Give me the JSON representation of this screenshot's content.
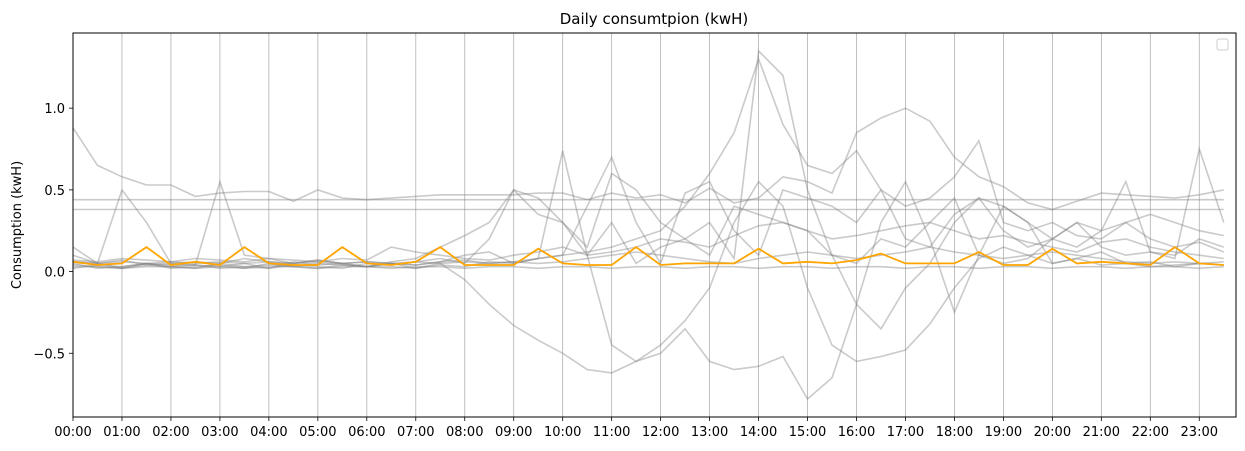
{
  "chart_data": {
    "type": "line",
    "title": "Daily consumtpion (kwH)",
    "xlabel": "",
    "ylabel": "Consumption (kwH)",
    "x_ticks": [
      "00:00",
      "01:00",
      "02:00",
      "03:00",
      "04:00",
      "05:00",
      "06:00",
      "07:00",
      "08:00",
      "09:00",
      "10:00",
      "11:00",
      "12:00",
      "13:00",
      "14:00",
      "15:00",
      "16:00",
      "17:00",
      "18:00",
      "19:00",
      "20:00",
      "21:00",
      "22:00",
      "23:00"
    ],
    "y_ticks": [
      -0.5,
      0.0,
      0.5,
      1.0
    ],
    "y_tick_labels": [
      "−0.5",
      "0.0",
      "0.5",
      "1.0"
    ],
    "xlim": [
      0,
      23.75
    ],
    "ylim": [
      -0.89,
      1.46
    ],
    "x_step_hours": 0.5,
    "grid": "vertical",
    "legend": "top-right, empty",
    "colors": {
      "background_series": "#808080",
      "highlight_series": "#FFA500",
      "grid": "#b0b0b0"
    },
    "background_series": [
      {
        "values": [
          0.88,
          0.65,
          0.58,
          0.53,
          0.53,
          0.46,
          0.48,
          0.49,
          0.49,
          0.43,
          0.5,
          0.45,
          0.44,
          0.45,
          0.46,
          0.47,
          0.47,
          0.47,
          0.47,
          0.48,
          0.48,
          0.44,
          0.48,
          0.45,
          0.47,
          0.42,
          0.51,
          0.42,
          0.45,
          0.58,
          0.55,
          0.48,
          0.85,
          0.94,
          1.0,
          0.92,
          0.7,
          0.58,
          0.52,
          0.42,
          0.38,
          0.43,
          0.48,
          0.47,
          0.46,
          0.45,
          0.47,
          0.5
        ]
      },
      {
        "values": [
          0.44,
          0.44,
          0.44,
          0.44,
          0.44,
          0.44,
          0.44,
          0.44,
          0.44,
          0.44,
          0.44,
          0.44,
          0.44,
          0.44,
          0.44,
          0.44,
          0.44,
          0.44,
          0.44,
          0.44,
          0.44,
          0.44,
          0.44,
          0.44,
          0.44,
          0.44,
          0.44,
          0.44,
          0.44,
          0.44,
          0.44,
          0.44,
          0.44,
          0.44,
          0.44,
          0.44,
          0.44,
          0.44,
          0.44,
          0.44,
          0.44,
          0.44,
          0.44,
          0.44,
          0.44,
          0.44,
          0.44,
          0.44
        ]
      },
      {
        "values": [
          0.38,
          0.38,
          0.38,
          0.38,
          0.38,
          0.38,
          0.38,
          0.38,
          0.38,
          0.38,
          0.38,
          0.38,
          0.38,
          0.38,
          0.38,
          0.38,
          0.38,
          0.38,
          0.38,
          0.38,
          0.38,
          0.38,
          0.38,
          0.38,
          0.38,
          0.38,
          0.38,
          0.38,
          0.38,
          0.38,
          0.38,
          0.38,
          0.38,
          0.38,
          0.38,
          0.38,
          0.38,
          0.38,
          0.38,
          0.38,
          0.38,
          0.38,
          0.38,
          0.38,
          0.38,
          0.38,
          0.38,
          0.38
        ]
      },
      {
        "values": [
          0.05,
          0.02,
          0.03,
          0.05,
          0.04,
          0.04,
          0.03,
          0.05,
          0.02,
          0.06,
          0.04,
          0.05,
          0.03,
          0.03,
          0.02,
          0.05,
          -0.05,
          -0.2,
          -0.33,
          -0.42,
          -0.5,
          -0.6,
          -0.62,
          -0.55,
          -0.45,
          -0.3,
          -0.1,
          0.3,
          0.55,
          0.4,
          -0.1,
          -0.45,
          -0.55,
          -0.52,
          -0.48,
          -0.32,
          -0.1,
          0.08,
          0.15,
          0.1,
          0.05,
          0.08,
          0.04,
          0.05,
          0.03,
          0.04,
          0.05,
          0.04
        ]
      },
      {
        "values": [
          0.04,
          0.03,
          0.02,
          0.05,
          0.03,
          0.04,
          0.02,
          0.03,
          0.04,
          0.03,
          0.05,
          0.04,
          0.03,
          0.06,
          0.08,
          0.15,
          0.22,
          0.3,
          0.5,
          0.45,
          0.3,
          0.1,
          -0.45,
          -0.55,
          -0.5,
          -0.35,
          -0.55,
          -0.6,
          -0.58,
          -0.52,
          -0.78,
          -0.65,
          -0.2,
          0.3,
          0.55,
          0.2,
          -0.25,
          0.1,
          0.4,
          0.3,
          0.05,
          0.08,
          0.12,
          0.05,
          0.06,
          0.03,
          0.05,
          0.04
        ]
      },
      {
        "values": [
          0.1,
          0.05,
          0.5,
          0.3,
          0.05,
          0.04,
          0.55,
          0.1,
          0.08,
          0.05,
          0.07,
          0.05,
          0.03,
          0.05,
          0.04,
          0.06,
          0.1,
          0.12,
          0.05,
          0.08,
          0.74,
          0.1,
          0.3,
          0.05,
          0.15,
          0.2,
          0.3,
          0.08,
          1.35,
          1.2,
          0.5,
          0.1,
          -0.2,
          -0.35,
          -0.1,
          0.05,
          0.3,
          0.45,
          0.4,
          0.3,
          0.2,
          0.15,
          0.25,
          0.55,
          0.12,
          0.1,
          0.2,
          0.15
        ]
      },
      {
        "values": [
          0.06,
          0.05,
          0.07,
          0.04,
          0.05,
          0.06,
          0.05,
          0.08,
          0.06,
          0.05,
          0.07,
          0.05,
          0.06,
          0.05,
          0.04,
          0.06,
          0.07,
          0.05,
          0.06,
          0.08,
          0.1,
          0.12,
          0.15,
          0.2,
          0.25,
          0.4,
          0.6,
          0.85,
          1.3,
          0.9,
          0.65,
          0.6,
          0.74,
          0.5,
          0.4,
          0.45,
          0.58,
          0.8,
          0.3,
          0.25,
          0.3,
          0.22,
          0.2,
          0.3,
          0.35,
          0.3,
          0.25,
          0.22
        ]
      },
      {
        "values": [
          0.15,
          0.05,
          0.02,
          0.04,
          0.03,
          0.02,
          0.05,
          0.03,
          0.02,
          0.04,
          0.03,
          0.02,
          0.05,
          0.04,
          0.06,
          0.08,
          0.05,
          0.2,
          0.5,
          0.35,
          0.3,
          0.15,
          0.6,
          0.5,
          0.3,
          0.2,
          0.1,
          0.4,
          0.35,
          0.3,
          0.25,
          0.1,
          0.05,
          0.2,
          0.15,
          0.3,
          0.45,
          0.1,
          0.05,
          0.08,
          0.2,
          0.3,
          0.15,
          0.1,
          0.12,
          0.08,
          0.75,
          0.3
        ]
      },
      {
        "values": [
          0.03,
          0.03,
          0.02,
          0.03,
          0.03,
          0.02,
          0.03,
          0.02,
          0.03,
          0.03,
          0.02,
          0.03,
          0.03,
          0.02,
          0.03,
          0.03,
          0.02,
          0.03,
          0.03,
          0.02,
          0.03,
          0.03,
          0.02,
          0.03,
          0.03,
          0.02,
          0.03,
          0.03,
          0.02,
          0.03,
          0.03,
          0.02,
          0.03,
          0.03,
          0.02,
          0.03,
          0.03,
          0.02,
          0.03,
          0.03,
          0.02,
          0.03,
          0.03,
          0.02,
          0.03,
          0.03,
          0.02,
          0.03
        ]
      },
      {
        "values": [
          0.07,
          0.06,
          0.08,
          0.07,
          0.06,
          0.08,
          0.07,
          0.06,
          0.08,
          0.07,
          0.06,
          0.08,
          0.07,
          0.15,
          0.12,
          0.1,
          0.08,
          0.07,
          0.1,
          0.12,
          0.15,
          0.1,
          0.12,
          0.15,
          0.2,
          0.18,
          0.15,
          0.22,
          0.28,
          0.3,
          0.25,
          0.2,
          0.22,
          0.25,
          0.28,
          0.3,
          0.25,
          0.2,
          0.22,
          0.18,
          0.15,
          0.12,
          0.18,
          0.2,
          0.15,
          0.12,
          0.1,
          0.08
        ]
      },
      {
        "values": [
          0.02,
          0.04,
          0.03,
          0.05,
          0.02,
          0.03,
          0.04,
          0.02,
          0.05,
          0.03,
          0.02,
          0.04,
          0.03,
          0.05,
          0.02,
          0.04,
          0.03,
          0.06,
          0.05,
          0.08,
          0.1,
          0.4,
          0.7,
          0.3,
          0.05,
          0.48,
          0.55,
          0.25,
          0.1,
          0.5,
          0.45,
          0.4,
          0.3,
          0.5,
          0.2,
          0.15,
          0.35,
          0.45,
          0.25,
          0.15,
          0.2,
          0.3,
          0.25,
          0.3,
          0.2,
          0.15,
          0.18,
          0.12
        ]
      },
      {
        "values": [
          0.06,
          0.05,
          0.06,
          0.05,
          0.06,
          0.05,
          0.06,
          0.05,
          0.06,
          0.05,
          0.06,
          0.05,
          0.06,
          0.05,
          0.06,
          0.05,
          0.06,
          0.05,
          0.06,
          0.05,
          0.06,
          0.08,
          0.1,
          0.12,
          0.1,
          0.08,
          0.06,
          0.05,
          0.08,
          0.1,
          0.12,
          0.1,
          0.08,
          0.1,
          0.12,
          0.15,
          0.12,
          0.1,
          0.08,
          0.1,
          0.12,
          0.1,
          0.08,
          0.06,
          0.05,
          0.06,
          0.05,
          0.06
        ]
      }
    ],
    "highlight_series": {
      "values": [
        0.06,
        0.04,
        0.05,
        0.15,
        0.04,
        0.06,
        0.04,
        0.15,
        0.05,
        0.04,
        0.04,
        0.15,
        0.05,
        0.04,
        0.06,
        0.15,
        0.04,
        0.04,
        0.04,
        0.14,
        0.05,
        0.04,
        0.04,
        0.15,
        0.04,
        0.05,
        0.05,
        0.05,
        0.14,
        0.05,
        0.06,
        0.05,
        0.07,
        0.11,
        0.05,
        0.05,
        0.05,
        0.12,
        0.04,
        0.04,
        0.14,
        0.05,
        0.06,
        0.05,
        0.04,
        0.15,
        0.05,
        0.04
      ]
    }
  }
}
